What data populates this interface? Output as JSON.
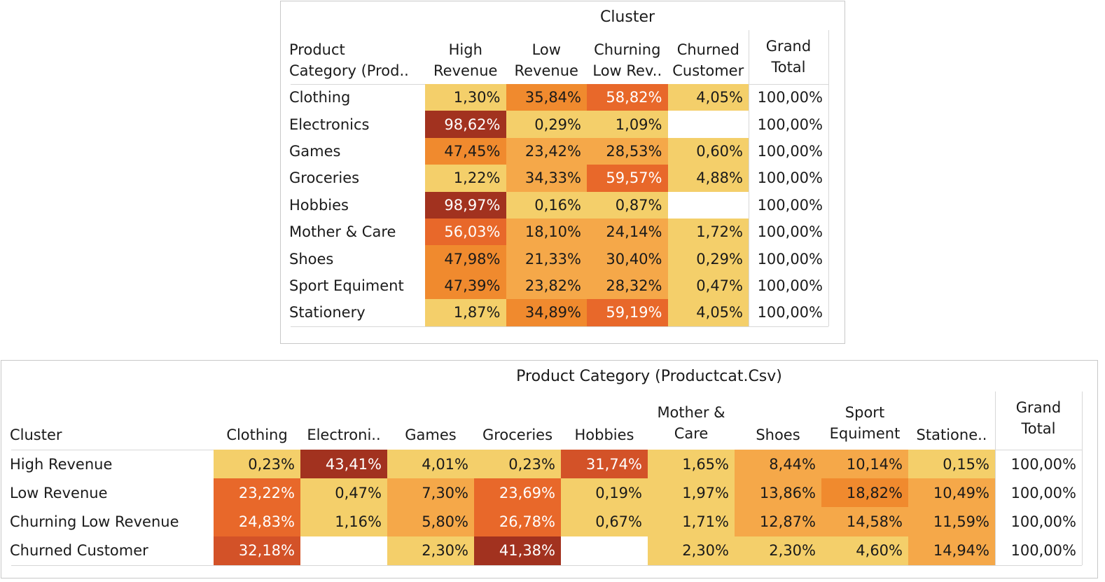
{
  "colors": {
    "scale": [
      "#f4cf6a",
      "#f5a849",
      "#f08a2e",
      "#e8682a",
      "#d35228",
      "#a2321f"
    ],
    "text_dark": "#1a1a1a",
    "text_light": "#ffffff"
  },
  "chart_data": [
    {
      "type": "heatmap",
      "title": "Cluster",
      "row_header": "Product\nCategory (Prod..",
      "columns": [
        "High\nRevenue",
        "Low\nRevenue",
        "Churning\nLow Rev..",
        "Churned\nCustomer"
      ],
      "grand_total_header": "Grand\nTotal",
      "rows": [
        "Clothing",
        "Electronics",
        "Games",
        "Groceries",
        "Hobbies",
        "Mother & Care",
        "Shoes",
        "Sport Equiment",
        "Stationery"
      ],
      "values": [
        [
          1.3,
          35.84,
          58.82,
          4.05
        ],
        [
          98.62,
          0.29,
          1.09,
          null
        ],
        [
          47.45,
          23.42,
          28.53,
          0.6
        ],
        [
          1.22,
          34.33,
          59.57,
          4.88
        ],
        [
          98.97,
          0.16,
          0.87,
          null
        ],
        [
          56.03,
          18.1,
          24.14,
          1.72
        ],
        [
          47.98,
          21.33,
          30.4,
          0.29
        ],
        [
          47.39,
          23.82,
          28.32,
          0.47
        ],
        [
          1.87,
          34.89,
          59.19,
          4.05
        ]
      ],
      "labels": [
        [
          "1,30%",
          "35,84%",
          "58,82%",
          "4,05%"
        ],
        [
          "98,62%",
          "0,29%",
          "1,09%",
          ""
        ],
        [
          "47,45%",
          "23,42%",
          "28,53%",
          "0,60%"
        ],
        [
          "1,22%",
          "34,33%",
          "59,57%",
          "4,88%"
        ],
        [
          "98,97%",
          "0,16%",
          "0,87%",
          ""
        ],
        [
          "56,03%",
          "18,10%",
          "24,14%",
          "1,72%"
        ],
        [
          "47,98%",
          "21,33%",
          "30,40%",
          "0,29%"
        ],
        [
          "47,39%",
          "23,82%",
          "28,32%",
          "0,47%"
        ],
        [
          "1,87%",
          "34,89%",
          "59,19%",
          "4,05%"
        ]
      ],
      "grand_totals": [
        "100,00%",
        "100,00%",
        "100,00%",
        "100,00%",
        "100,00%",
        "100,00%",
        "100,00%",
        "100,00%",
        "100,00%"
      ]
    },
    {
      "type": "heatmap",
      "title": "Product Category (Productcat.Csv)",
      "row_header": "Cluster",
      "columns": [
        "Clothing",
        "Electroni..",
        "Games",
        "Groceries",
        "Hobbies",
        "Mother &\nCare",
        "Shoes",
        "Sport\nEquiment",
        "Statione.."
      ],
      "grand_total_header": "Grand\nTotal",
      "rows": [
        "High Revenue",
        "Low Revenue",
        "Churning Low Revenue",
        "Churned Customer"
      ],
      "values": [
        [
          0.23,
          43.41,
          4.01,
          0.23,
          31.74,
          1.65,
          8.44,
          10.14,
          0.15
        ],
        [
          23.22,
          0.47,
          7.3,
          23.69,
          0.19,
          1.97,
          13.86,
          18.82,
          10.49
        ],
        [
          24.83,
          1.16,
          5.8,
          26.78,
          0.67,
          1.71,
          12.87,
          14.58,
          11.59
        ],
        [
          32.18,
          null,
          2.3,
          41.38,
          null,
          2.3,
          2.3,
          4.6,
          14.94
        ]
      ],
      "labels": [
        [
          "0,23%",
          "43,41%",
          "4,01%",
          "0,23%",
          "31,74%",
          "1,65%",
          "8,44%",
          "10,14%",
          "0,15%"
        ],
        [
          "23,22%",
          "0,47%",
          "7,30%",
          "23,69%",
          "0,19%",
          "1,97%",
          "13,86%",
          "18,82%",
          "10,49%"
        ],
        [
          "24,83%",
          "1,16%",
          "5,80%",
          "26,78%",
          "0,67%",
          "1,71%",
          "12,87%",
          "14,58%",
          "11,59%"
        ],
        [
          "32,18%",
          "",
          "2,30%",
          "41,38%",
          "",
          "2,30%",
          "2,30%",
          "4,60%",
          "14,94%"
        ]
      ],
      "grand_totals": [
        "100,00%",
        "100,00%",
        "100,00%",
        "100,00%"
      ]
    }
  ]
}
